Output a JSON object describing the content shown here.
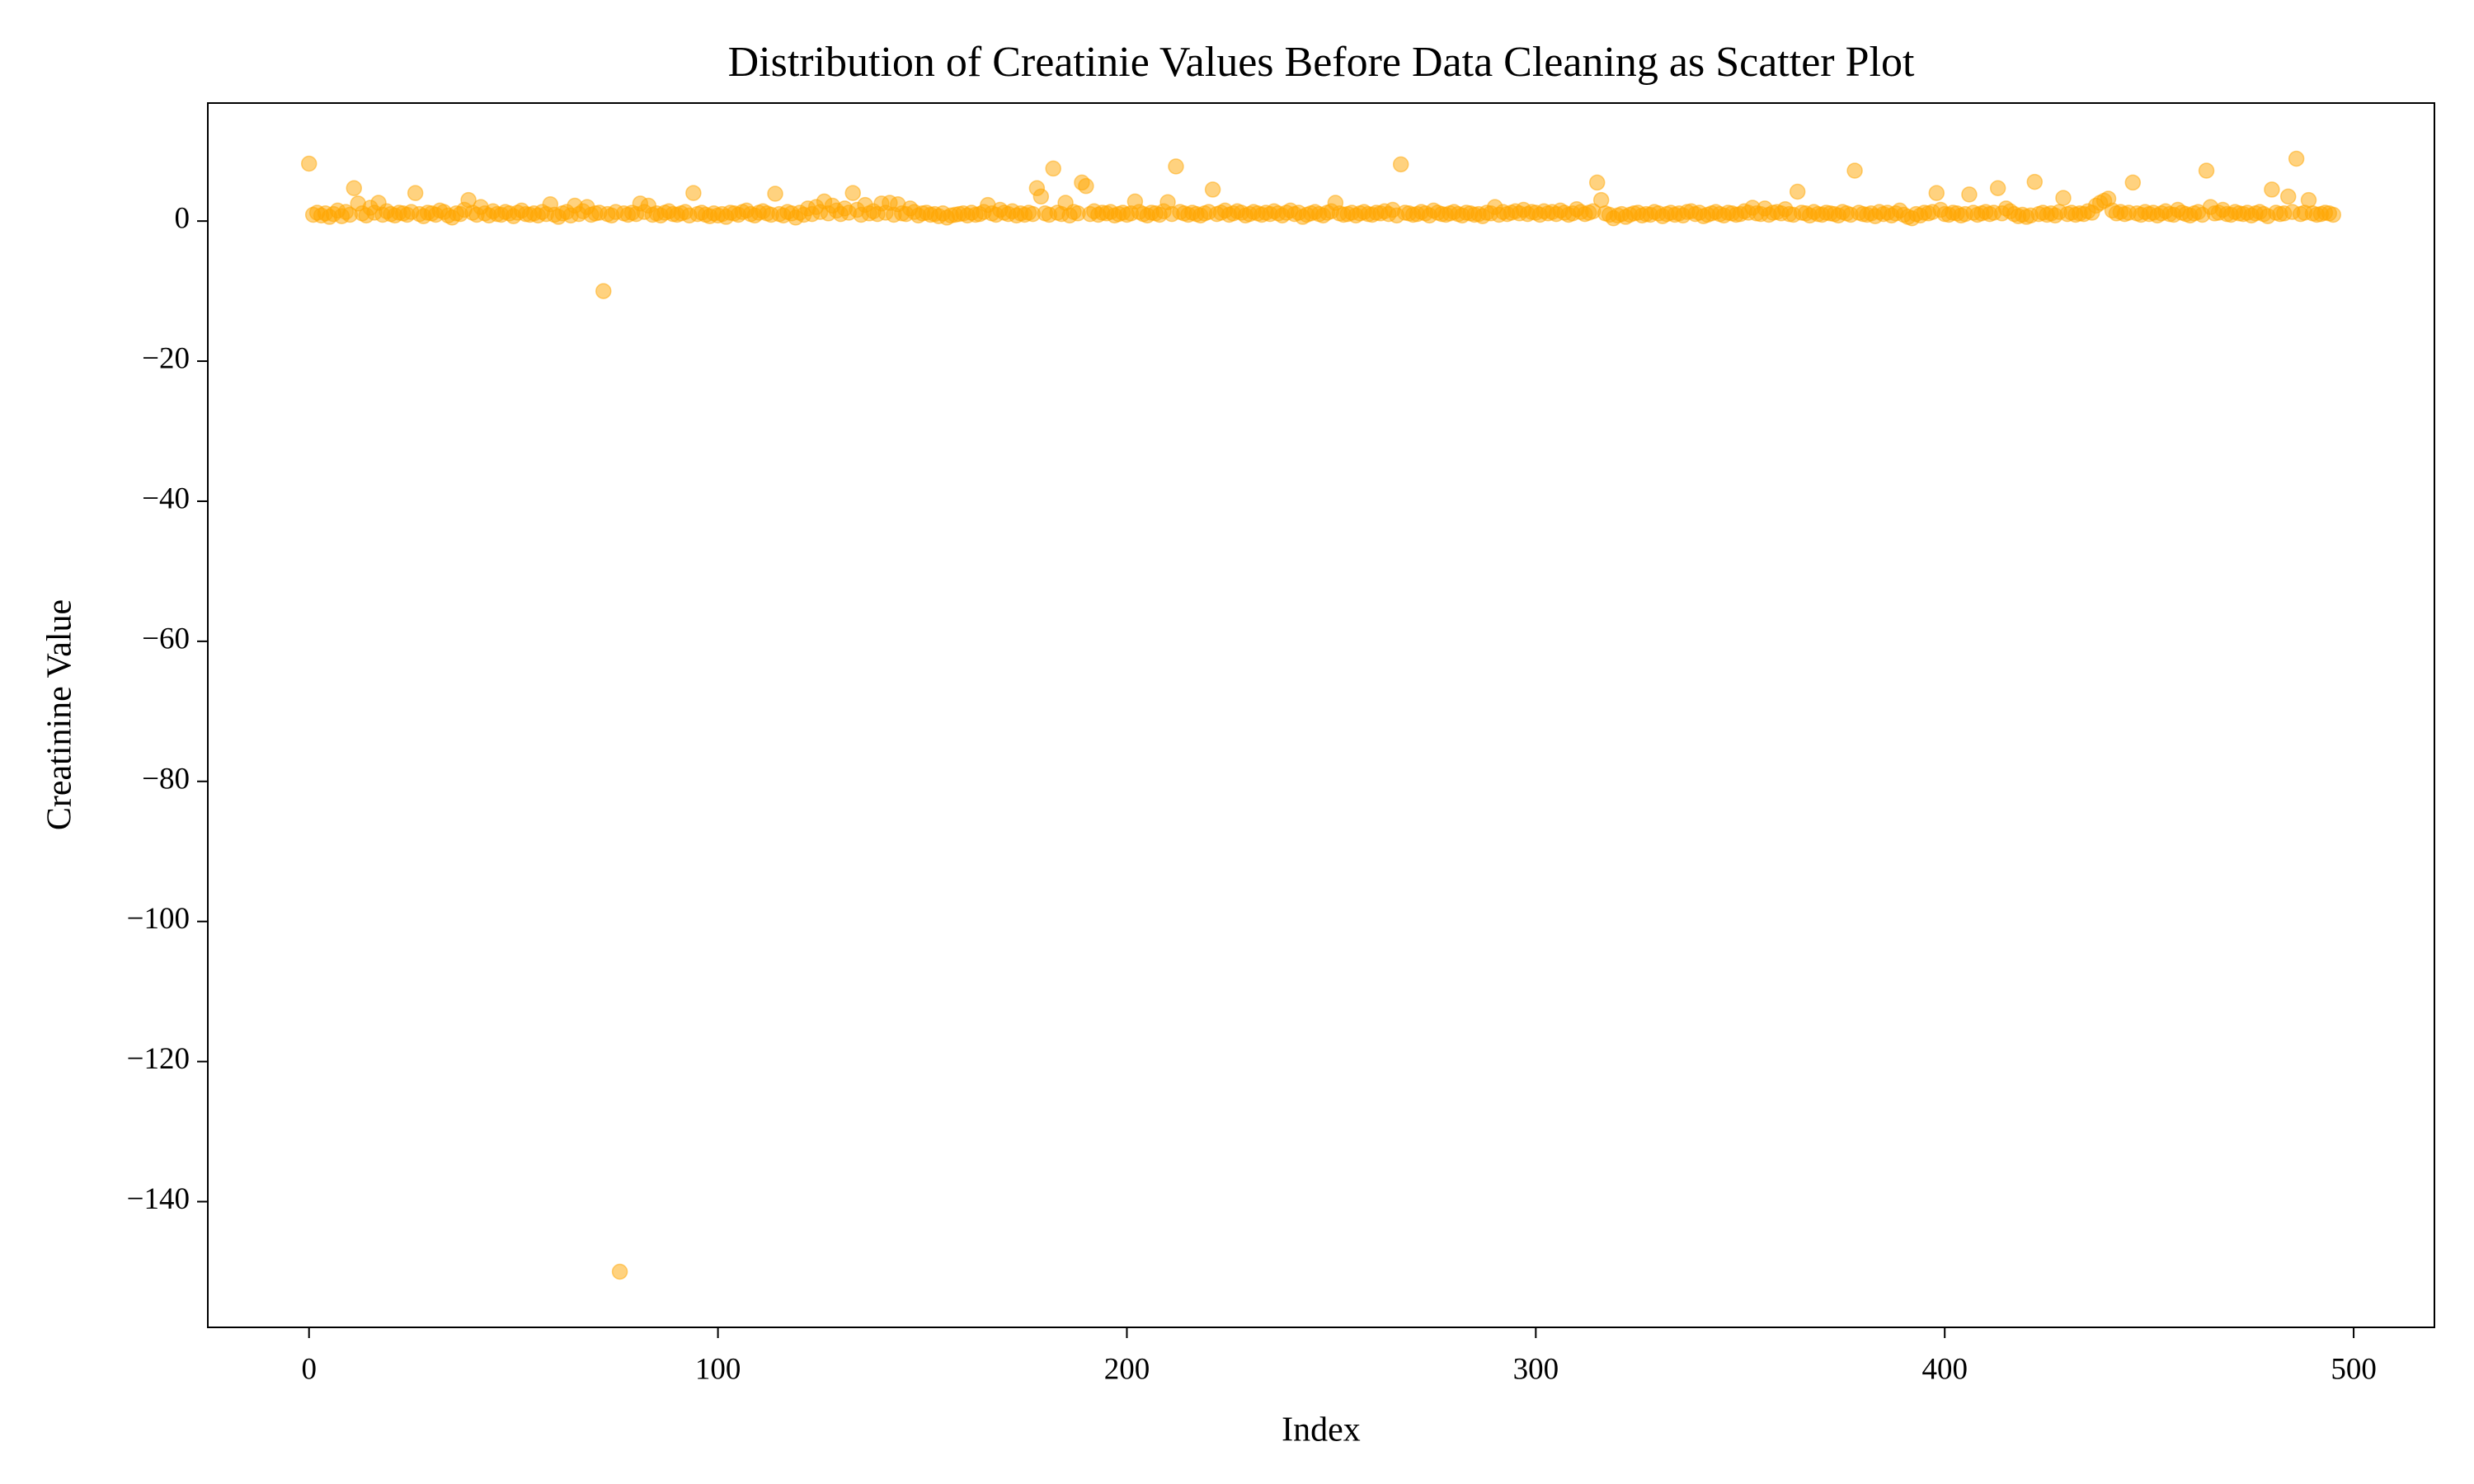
{
  "chart_data": {
    "type": "scatter",
    "title": "Distribution of Creatinie Values Before Data Cleaning as Scatter Plot",
    "xlabel": "Index",
    "ylabel": "Creatinine Value",
    "color": "orange",
    "opacity": 0.5,
    "xlim": [
      -24.75,
      519.75
    ],
    "ylim": [
      -157.95,
      16.85
    ],
    "xticks": [
      0,
      100,
      200,
      300,
      400,
      500
    ],
    "yticks": [
      {
        "value": -140,
        "label": "−140"
      },
      {
        "value": -120,
        "label": "−120"
      },
      {
        "value": -100,
        "label": "−100"
      },
      {
        "value": -80,
        "label": "−80"
      },
      {
        "value": -60,
        "label": "−60"
      },
      {
        "value": -40,
        "label": "−40"
      },
      {
        "value": -20,
        "label": "−20"
      },
      0
    ],
    "grid": false,
    "x": [
      0,
      1,
      2,
      3,
      4,
      5,
      6,
      7,
      8,
      9,
      10,
      11,
      12,
      13,
      14,
      15,
      16,
      17,
      18,
      19,
      20,
      21,
      22,
      23,
      24,
      25,
      26,
      27,
      28,
      29,
      30,
      31,
      32,
      33,
      34,
      35,
      36,
      37,
      38,
      39,
      40,
      41,
      42,
      43,
      44,
      45,
      46,
      47,
      48,
      49,
      50,
      51,
      52,
      53,
      54,
      55,
      56,
      57,
      58,
      59,
      60,
      61,
      62,
      63,
      64,
      65,
      66,
      67,
      68,
      69,
      70,
      71,
      72,
      73,
      74,
      75,
      76,
      77,
      78,
      79,
      80,
      81,
      82,
      83,
      84,
      85,
      86,
      87,
      88,
      89,
      90,
      91,
      92,
      93,
      94,
      95,
      96,
      97,
      98,
      99,
      100,
      101,
      102,
      103,
      104,
      105,
      106,
      107,
      108,
      109,
      110,
      111,
      112,
      113,
      114,
      115,
      116,
      117,
      118,
      119,
      120,
      121,
      122,
      123,
      124,
      125,
      126,
      127,
      128,
      129,
      130,
      131,
      132,
      133,
      134,
      135,
      136,
      137,
      138,
      139,
      140,
      141,
      142,
      143,
      144,
      145,
      146,
      147,
      148,
      149,
      150,
      151,
      152,
      153,
      154,
      155,
      156,
      157,
      158,
      159,
      160,
      161,
      162,
      163,
      164,
      165,
      166,
      167,
      168,
      169,
      170,
      171,
      172,
      173,
      174,
      175,
      176,
      177,
      178,
      179,
      180,
      181,
      182,
      183,
      184,
      185,
      186,
      187,
      188,
      189,
      190,
      191,
      192,
      193,
      194,
      195,
      196,
      197,
      198,
      199,
      200,
      201,
      202,
      203,
      204,
      205,
      206,
      207,
      208,
      209,
      210,
      211,
      212,
      213,
      214,
      215,
      216,
      217,
      218,
      219,
      220,
      221,
      222,
      223,
      224,
      225,
      226,
      227,
      228,
      229,
      230,
      231,
      232,
      233,
      234,
      235,
      236,
      237,
      238,
      239,
      240,
      241,
      242,
      243,
      244,
      245,
      246,
      247,
      248,
      249,
      250,
      251,
      252,
      253,
      254,
      255,
      256,
      257,
      258,
      259,
      260,
      261,
      262,
      263,
      264,
      265,
      266,
      267,
      268,
      269,
      270,
      271,
      272,
      273,
      274,
      275,
      276,
      277,
      278,
      279,
      280,
      281,
      282,
      283,
      284,
      285,
      286,
      287,
      288,
      289,
      290,
      291,
      292,
      293,
      294,
      295,
      296,
      297,
      298,
      299,
      300,
      301,
      302,
      303,
      304,
      305,
      306,
      307,
      308,
      309,
      310,
      311,
      312,
      313,
      314,
      315,
      316,
      317,
      318,
      319,
      320,
      321,
      322,
      323,
      324,
      325,
      326,
      327,
      328,
      329,
      330,
      331,
      332,
      333,
      334,
      335,
      336,
      337,
      338,
      339,
      340,
      341,
      342,
      343,
      344,
      345,
      346,
      347,
      348,
      349,
      350,
      351,
      352,
      353,
      354,
      355,
      356,
      357,
      358,
      359,
      360,
      361,
      362,
      363,
      364,
      365,
      366,
      367,
      368,
      369,
      370,
      371,
      372,
      373,
      374,
      375,
      376,
      377,
      378,
      379,
      380,
      381,
      382,
      383,
      384,
      385,
      386,
      387,
      388,
      389,
      390,
      391,
      392,
      393,
      394,
      395,
      396,
      397,
      398,
      399,
      400,
      401,
      402,
      403,
      404,
      405,
      406,
      407,
      408,
      409,
      410,
      411,
      412,
      413,
      414,
      415,
      416,
      417,
      418,
      419,
      420,
      421,
      422,
      423,
      424,
      425,
      426,
      427,
      428,
      429,
      430,
      431,
      432,
      433,
      434,
      435,
      436,
      437,
      438,
      439,
      440,
      441,
      442,
      443,
      444,
      445,
      446,
      447,
      448,
      449,
      450,
      451,
      452,
      453,
      454,
      455,
      456,
      457,
      458,
      459,
      460,
      461,
      462,
      463,
      464,
      465,
      466,
      467,
      468,
      469,
      470,
      471,
      472,
      473,
      474,
      475,
      476,
      477,
      478,
      479,
      480,
      481,
      482,
      483,
      484,
      485,
      486,
      487,
      488,
      489,
      490,
      491,
      492,
      493,
      494,
      495
    ],
    "values": [
      8.2,
      0.9,
      1.2,
      0.8,
      1.1,
      0.6,
      1.0,
      1.5,
      0.7,
      1.3,
      0.9,
      4.7,
      2.5,
      1.1,
      0.8,
      1.9,
      1.2,
      2.6,
      0.9,
      1.4,
      1.0,
      0.8,
      1.2,
      1.1,
      0.9,
      1.3,
      4.0,
      1.0,
      0.7,
      1.2,
      1.1,
      0.9,
      1.5,
      1.3,
      0.8,
      0.5,
      1.1,
      1.0,
      1.6,
      3.0,
      1.2,
      0.9,
      2.0,
      1.1,
      0.8,
      1.4,
      1.0,
      0.9,
      1.3,
      1.1,
      0.7,
      1.2,
      1.5,
      1.0,
      0.9,
      1.1,
      0.8,
      1.3,
      1.0,
      2.4,
      0.9,
      0.6,
      1.1,
      1.3,
      0.8,
      2.2,
      1.0,
      1.4,
      2.0,
      0.9,
      1.1,
      1.2,
      -10,
      1.0,
      0.8,
      1.3,
      -150,
      1.1,
      0.9,
      1.2,
      1.0,
      2.5,
      1.3,
      2.2,
      0.9,
      1.1,
      0.8,
      1.2,
      1.4,
      1.0,
      0.9,
      1.1,
      1.3,
      0.8,
      4.0,
      1.0,
      1.2,
      0.9,
      0.7,
      1.1,
      0.8,
      1.0,
      0.6,
      1.2,
      1.1,
      0.9,
      1.3,
      1.5,
      1.0,
      0.8,
      1.2,
      1.4,
      1.1,
      0.9,
      3.9,
      1.0,
      0.8,
      1.3,
      1.1,
      0.5,
      1.2,
      0.9,
      1.8,
      1.0,
      2.0,
      1.3,
      2.8,
      1.1,
      2.2,
      1.5,
      1.0,
      1.8,
      1.2,
      4.0,
      1.6,
      0.9,
      2.3,
      1.1,
      1.4,
      1.0,
      2.5,
      1.2,
      2.6,
      0.9,
      2.4,
      1.1,
      1.0,
      1.8,
      1.3,
      0.8,
      1.1,
      1.2,
      0.9,
      1.0,
      0.7,
      1.1,
      0.5,
      0.8,
      0.9,
      1.0,
      1.1,
      0.8,
      1.2,
      0.9,
      1.0,
      1.3,
      2.3,
      1.1,
      0.9,
      1.6,
      1.2,
      1.0,
      1.4,
      0.8,
      1.1,
      0.9,
      1.2,
      1.0,
      4.7,
      3.5,
      1.1,
      0.9,
      7.5,
      1.2,
      1.0,
      2.6,
      0.8,
      1.3,
      1.1,
      5.5,
      5.0,
      1.0,
      1.4,
      0.9,
      1.2,
      1.1,
      1.3,
      0.8,
      1.0,
      1.2,
      0.9,
      1.1,
      2.8,
      1.3,
      1.0,
      0.8,
      1.2,
      1.1,
      0.9,
      1.4,
      2.7,
      1.0,
      7.8,
      1.3,
      1.1,
      0.9,
      1.2,
      1.0,
      0.8,
      1.1,
      1.3,
      4.5,
      1.0,
      1.2,
      1.5,
      0.9,
      1.1,
      1.4,
      1.2,
      0.8,
      1.0,
      1.3,
      1.1,
      0.9,
      1.2,
      1.0,
      1.4,
      1.1,
      0.8,
      1.2,
      1.5,
      1.0,
      1.2,
      0.6,
      0.9,
      1.1,
      1.3,
      1.0,
      0.8,
      1.2,
      1.4,
      2.6,
      1.1,
      0.9,
      1.0,
      1.2,
      0.8,
      1.1,
      1.3,
      1.0,
      0.9,
      1.2,
      1.1,
      1.4,
      1.0,
      1.6,
      0.8,
      8.1,
      1.2,
      1.1,
      0.9,
      1.0,
      1.3,
      1.1,
      0.8,
      1.5,
      1.2,
      1.0,
      0.9,
      1.1,
      1.3,
      1.0,
      0.8,
      1.2,
      1.1,
      0.9,
      1.0,
      0.7,
      1.2,
      1.1,
      2.0,
      0.9,
      1.3,
      1.0,
      1.2,
      1.4,
      1.1,
      1.6,
      1.0,
      1.3,
      1.2,
      0.9,
      1.4,
      1.1,
      1.3,
      1.0,
      1.5,
      1.2,
      0.9,
      1.1,
      1.7,
      1.3,
      1.0,
      1.2,
      1.4,
      5.5,
      3.0,
      1.1,
      0.9,
      0.4,
      0.8,
      1.0,
      0.6,
      0.9,
      1.1,
      1.2,
      0.8,
      1.0,
      0.9,
      1.3,
      1.1,
      0.7,
      1.0,
      1.2,
      0.9,
      1.1,
      0.8,
      1.3,
      1.4,
      1.0,
      1.2,
      0.7,
      0.9,
      1.1,
      1.3,
      1.0,
      0.8,
      1.2,
      1.1,
      0.9,
      1.0,
      1.4,
      1.2,
      1.9,
      1.1,
      1.0,
      1.8,
      0.9,
      1.2,
      1.3,
      1.1,
      1.7,
      1.0,
      0.9,
      4.2,
      1.2,
      1.1,
      0.8,
      1.3,
      1.0,
      0.9,
      1.2,
      1.1,
      1.0,
      0.8,
      1.3,
      1.1,
      0.9,
      7.2,
      1.2,
      1.0,
      0.9,
      1.1,
      0.7,
      1.3,
      1.0,
      1.2,
      0.8,
      1.1,
      1.5,
      0.9,
      0.6,
      0.4,
      1.0,
      0.8,
      1.2,
      1.1,
      1.3,
      4.0,
      1.6,
      1.0,
      0.9,
      1.2,
      1.1,
      0.8,
      1.0,
      3.8,
      1.2,
      0.9,
      1.1,
      1.3,
      1.0,
      1.2,
      4.7,
      1.1,
      1.8,
      1.4,
      1.0,
      0.7,
      0.9,
      0.6,
      0.8,
      5.6,
      1.0,
      1.2,
      0.9,
      1.1,
      0.8,
      1.3,
      3.3,
      1.0,
      1.2,
      0.9,
      1.1,
      1.0,
      1.4,
      1.2,
      2.2,
      2.6,
      2.9,
      3.2,
      1.5,
      1.1,
      1.3,
      1.0,
      1.2,
      5.5,
      1.1,
      0.9,
      1.3,
      1.0,
      1.2,
      0.8,
      1.1,
      1.4,
      1.0,
      0.9,
      1.6,
      1.2,
      1.0,
      0.8,
      1.1,
      1.3,
      0.9,
      7.2,
      2.0,
      1.1,
      1.2,
      1.6,
      1.0,
      0.9,
      1.3,
      1.1,
      1.0,
      1.2,
      0.8,
      1.1,
      1.3,
      1.0,
      0.7,
      4.5,
      1.2,
      1.0,
      1.1,
      3.5,
      1.3,
      8.9,
      1.0,
      1.2,
      3.0,
      1.1,
      0.9,
      1.0,
      1.2,
      1.1,
      0.9
    ]
  }
}
